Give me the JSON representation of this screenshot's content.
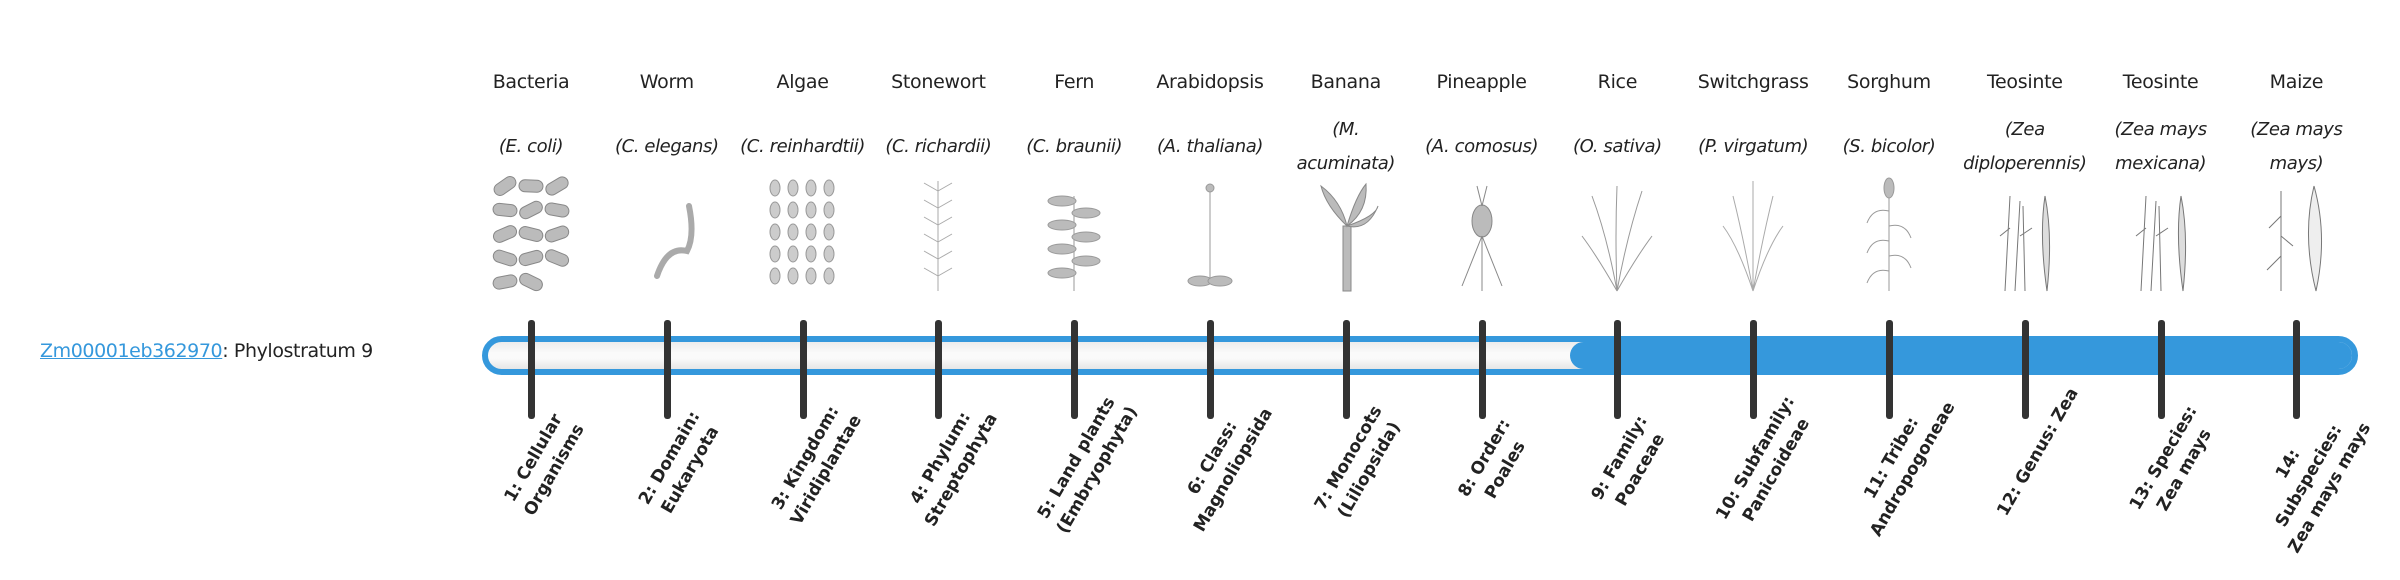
{
  "gene": {
    "id": "Zm00001eb362970",
    "suffix": ": Phylostratum 9",
    "phylostratum": 9
  },
  "colors": {
    "accent": "#3598dc",
    "tick": "#333333"
  },
  "organisms": [
    {
      "common": "Bacteria",
      "sci": "(E. coli)",
      "icon": "bacteria-image"
    },
    {
      "common": "Worm",
      "sci": "(C. elegans)",
      "icon": "worm-image"
    },
    {
      "common": "Algae",
      "sci": "(C. reinhardtii)",
      "icon": "algae-image"
    },
    {
      "common": "Stonewort",
      "sci": "(C. richardii)",
      "icon": "stonewort-image"
    },
    {
      "common": "Fern",
      "sci": "(C. braunii)",
      "icon": "fern-image"
    },
    {
      "common": "Arabidopsis",
      "sci": "(A. thaliana)",
      "icon": "arabidopsis-image"
    },
    {
      "common": "Banana",
      "sci": "(M. acuminata)",
      "icon": "banana-image"
    },
    {
      "common": "Pineapple",
      "sci": "(A. comosus)",
      "icon": "pineapple-image"
    },
    {
      "common": "Rice",
      "sci": "(O. sativa)",
      "icon": "rice-image"
    },
    {
      "common": "Switchgrass",
      "sci": "(P. virgatum)",
      "icon": "switchgrass-image"
    },
    {
      "common": "Sorghum",
      "sci": "(S. bicolor)",
      "icon": "sorghum-image"
    },
    {
      "common": "Teosinte",
      "sci": "(Zea diploperennis)",
      "icon": "teosinte-image"
    },
    {
      "common": "Teosinte",
      "sci": "(Zea mays mexicana)",
      "icon": "teosinte-image"
    },
    {
      "common": "Maize",
      "sci": "(Zea mays mays)",
      "icon": "maize-image"
    }
  ],
  "strata": [
    "1: Cellular Organisms",
    "2: Domain: Eukaryota",
    "3: Kingdom: Viridiplantae",
    "4: Phylum: Streptophyta",
    "5: Land plants (Embryophyta)",
    "6: Class: Magnoliopsida",
    "7: Monocots (Liliopsida)",
    "8: Order: Poales",
    "9: Family: Poaceae",
    "10: Subfamily: Panicoideae",
    "11: Tribe: Andropogoneae",
    "12: Genus: Zea",
    "13: Species: Zea mays",
    "14: Subspecies: Zea mays mays"
  ]
}
